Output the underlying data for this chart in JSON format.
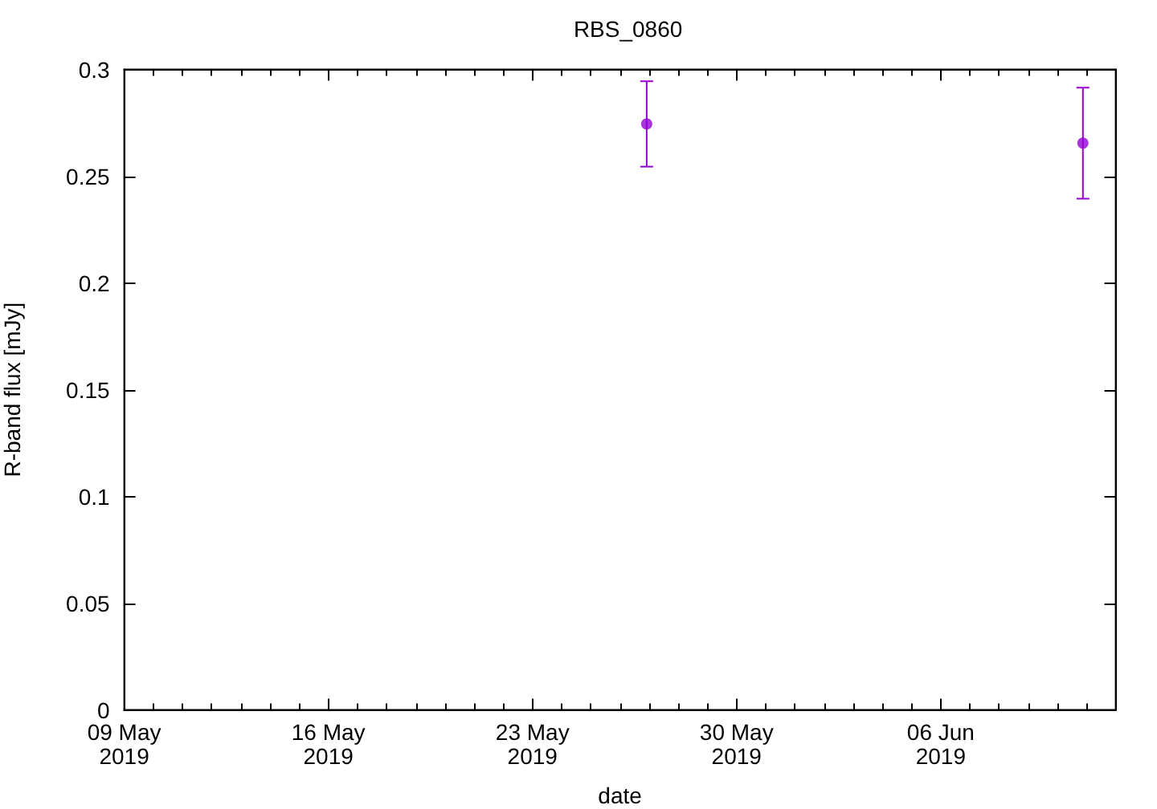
{
  "chart_data": {
    "type": "scatter",
    "title": "RBS_0860",
    "xlabel": "date",
    "ylabel": "R-band flux [mJy]",
    "x": [
      "2019-05-26T22:00",
      "2019-06-10T21:00"
    ],
    "values": [
      0.2745,
      0.2655
    ],
    "errors": [
      0.02,
      0.026
    ],
    "color": "#9400d3",
    "marker": "circle",
    "xlim": [
      "2019-05-09",
      "2019-06-12"
    ],
    "xticks": [
      {
        "value": "2019-05-09",
        "label": "09 May\n2019"
      },
      {
        "value": "2019-05-10",
        "label": null
      },
      {
        "value": "2019-05-11",
        "label": null
      },
      {
        "value": "2019-05-12",
        "label": null
      },
      {
        "value": "2019-05-13",
        "label": null
      },
      {
        "value": "2019-05-14",
        "label": null
      },
      {
        "value": "2019-05-15",
        "label": null
      },
      {
        "value": "2019-05-16",
        "label": "16 May\n2019"
      },
      {
        "value": "2019-05-17",
        "label": null
      },
      {
        "value": "2019-05-18",
        "label": null
      },
      {
        "value": "2019-05-19",
        "label": null
      },
      {
        "value": "2019-05-20",
        "label": null
      },
      {
        "value": "2019-05-21",
        "label": null
      },
      {
        "value": "2019-05-22",
        "label": null
      },
      {
        "value": "2019-05-23",
        "label": "23 May\n2019"
      },
      {
        "value": "2019-05-24",
        "label": null
      },
      {
        "value": "2019-05-25",
        "label": null
      },
      {
        "value": "2019-05-26",
        "label": null
      },
      {
        "value": "2019-05-27",
        "label": null
      },
      {
        "value": "2019-05-28",
        "label": null
      },
      {
        "value": "2019-05-29",
        "label": null
      },
      {
        "value": "2019-05-30",
        "label": "30 May\n2019"
      },
      {
        "value": "2019-05-31",
        "label": null
      },
      {
        "value": "2019-06-01",
        "label": null
      },
      {
        "value": "2019-06-02",
        "label": null
      },
      {
        "value": "2019-06-03",
        "label": null
      },
      {
        "value": "2019-06-04",
        "label": null
      },
      {
        "value": "2019-06-05",
        "label": null
      },
      {
        "value": "2019-06-06",
        "label": "06 Jun\n2019"
      },
      {
        "value": "2019-06-07",
        "label": null
      },
      {
        "value": "2019-06-08",
        "label": null
      },
      {
        "value": "2019-06-09",
        "label": null
      },
      {
        "value": "2019-06-10",
        "label": null
      },
      {
        "value": "2019-06-11",
        "label": null
      }
    ],
    "ylim": [
      0,
      0.3
    ],
    "yticks": [
      0,
      0.05,
      0.1,
      0.15,
      0.2,
      0.25,
      0.3
    ],
    "grid": false
  }
}
